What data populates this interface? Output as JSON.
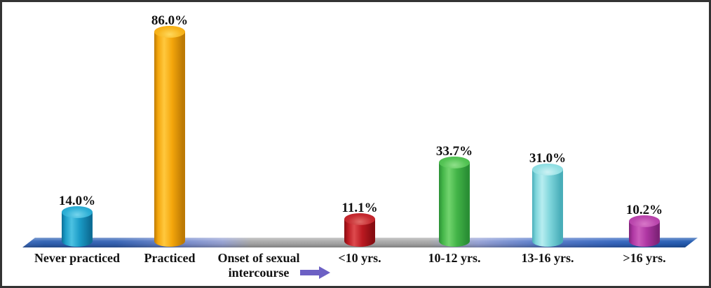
{
  "chart_data": {
    "type": "bar",
    "bar_style": "3d-cylinder",
    "title": "",
    "xlabel": "",
    "ylabel": "",
    "ylim": [
      0,
      100
    ],
    "grid": false,
    "legend": "none",
    "unit": "%",
    "categories": [
      "Never practiced",
      "Practiced",
      "<10 yrs.",
      "10-12 yrs.",
      "13-16 yrs.",
      ">16 yrs."
    ],
    "values": [
      14.0,
      86.0,
      11.1,
      33.7,
      31.0,
      10.2
    ],
    "value_labels": [
      "14.0%",
      "86.0%",
      "11.1%",
      "33.7%",
      "31.0%",
      "10.2%"
    ],
    "bar_colors": [
      {
        "name": "blue",
        "light": "#4cc2e2",
        "main": "#1b9cc7",
        "dark": "#0d6e96",
        "cap": "#2fb0d6",
        "cap_hi": "#74d4ec"
      },
      {
        "name": "orange",
        "light": "#ffc83e",
        "main": "#f4a60b",
        "dark": "#bd7a04",
        "cap": "#f7b41c",
        "cap_hi": "#ffd95d"
      },
      {
        "name": "red",
        "light": "#dd4a4e",
        "main": "#bb1a21",
        "dark": "#870d12",
        "cap": "#c52a30",
        "cap_hi": "#e06a66"
      },
      {
        "name": "green",
        "light": "#72d46e",
        "main": "#43b548",
        "dark": "#2a8f35",
        "cap": "#55c455",
        "cap_hi": "#8fe08a"
      },
      {
        "name": "cyan",
        "light": "#b7edf0",
        "main": "#7ed5db",
        "dark": "#49aeb9",
        "cap": "#95e0e4",
        "cap_hi": "#cdf2f4"
      },
      {
        "name": "magenta",
        "light": "#cb5cbc",
        "main": "#ae36a2",
        "dark": "#7f2379",
        "cap": "#bb48ae",
        "cap_hi": "#d876c8"
      }
    ],
    "annotation": {
      "line1": "Onset of sexual",
      "line2": "intercourse",
      "arrow": "right-arrow",
      "arrow_color": "#6c60c4"
    },
    "floor_colors": {
      "left_blue": "#2e61b4",
      "mid_gray": "#a9a9a9",
      "right_blue": "#1d58ae"
    }
  }
}
